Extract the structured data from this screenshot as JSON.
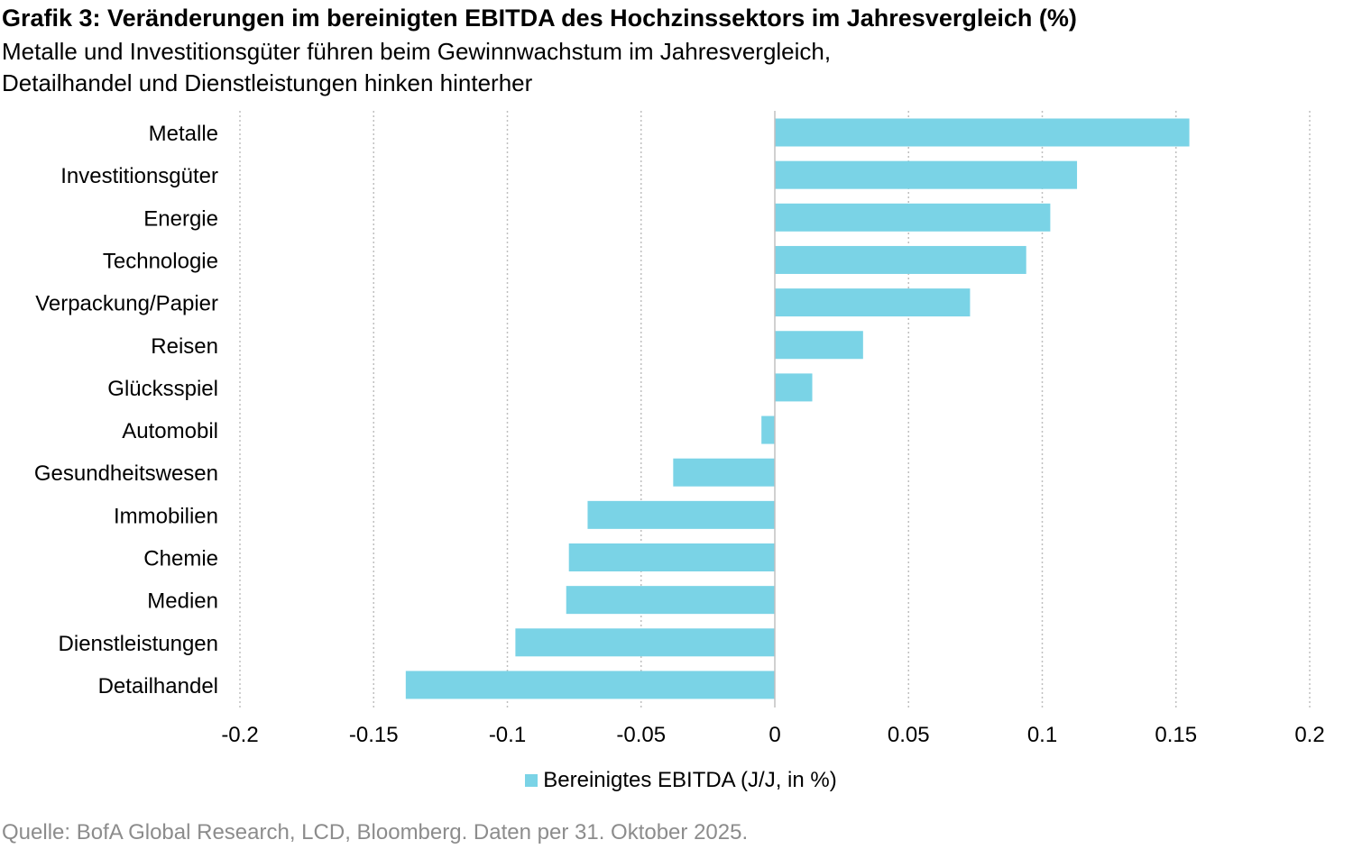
{
  "header": {
    "title": "Grafik 3: Veränderungen im bereinigten EBITDA des Hochzinssektors im Jahresvergleich (%)",
    "subtitle_line1": "Metalle und Investitionsgüter führen beim Gewinnwachstum im Jahresvergleich,",
    "subtitle_line2": "Detailhandel und Dienstleistungen hinken hinterher"
  },
  "footer": {
    "source": "Quelle: BofA Global Research, LCD, Bloomberg. Daten per 31. Oktober 2025."
  },
  "colors": {
    "bar": "#7ad3e6",
    "grid": "#bfbfbf",
    "axis": "#c0c0c0"
  },
  "chart_data": {
    "type": "bar",
    "orientation": "horizontal",
    "categories": [
      "Metalle",
      "Investitionsgüter",
      "Energie",
      "Technologie",
      "Verpackung/Papier",
      "Reisen",
      "Glücksspiel",
      "Automobil",
      "Gesundheitswesen",
      "Immobilien",
      "Chemie",
      "Medien",
      "Dienstleistungen",
      "Detailhandel"
    ],
    "series": [
      {
        "name": "Bereinigtes EBITDA (J/J, in %)",
        "values": [
          0.155,
          0.113,
          0.103,
          0.094,
          0.073,
          0.033,
          0.014,
          -0.005,
          -0.038,
          -0.07,
          -0.077,
          -0.078,
          -0.097,
          -0.138
        ]
      }
    ],
    "xlim": [
      -0.2,
      0.2
    ],
    "xticks": [
      "-0.2",
      "-0.15",
      "-0.1",
      "-0.05",
      "0",
      "0.05",
      "0.1",
      "0.15",
      "0.2"
    ],
    "xtick_values": [
      -0.2,
      -0.15,
      -0.1,
      -0.05,
      0,
      0.05,
      0.1,
      0.15,
      0.2
    ],
    "grid": "vertical-dotted",
    "legend_position": "bottom"
  }
}
